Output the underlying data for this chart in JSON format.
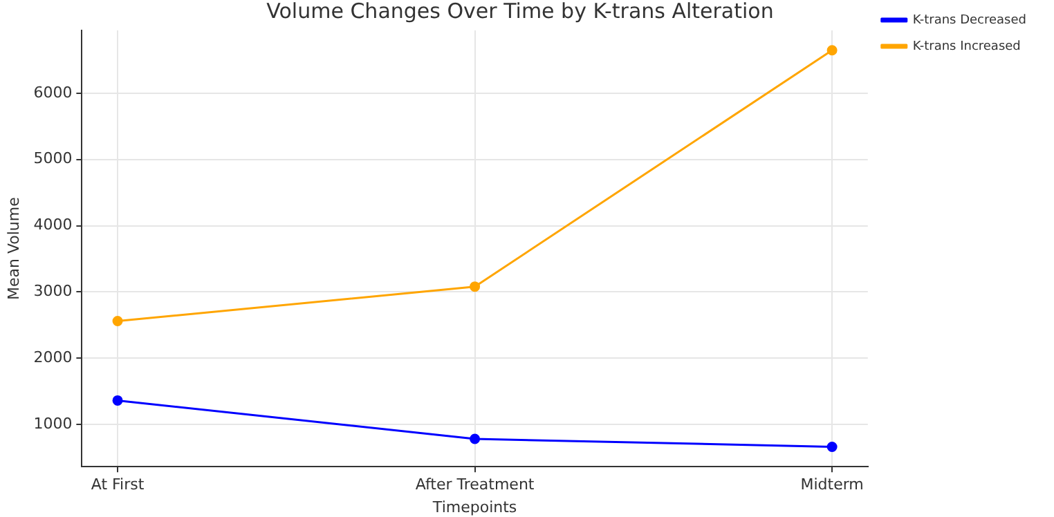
{
  "chart_data": {
    "type": "line",
    "title": "Volume Changes Over Time by K-trans Alteration",
    "xlabel": "Timepoints",
    "ylabel": "Mean Volume",
    "categories": [
      "At First",
      "After Treatment",
      "Midterm"
    ],
    "series": [
      {
        "name": "K-trans Decreased",
        "color": "#0000ff",
        "values": [
          1360,
          780,
          660
        ]
      },
      {
        "name": "K-trans Increased",
        "color": "#ffa500",
        "values": [
          2560,
          3080,
          6650
        ]
      }
    ],
    "ylim": [
      360,
      6950
    ],
    "yticks": [
      1000,
      2000,
      3000,
      4000,
      5000,
      6000
    ],
    "grid": true,
    "legend": "right",
    "marker": "circle",
    "line_style": "solid"
  }
}
